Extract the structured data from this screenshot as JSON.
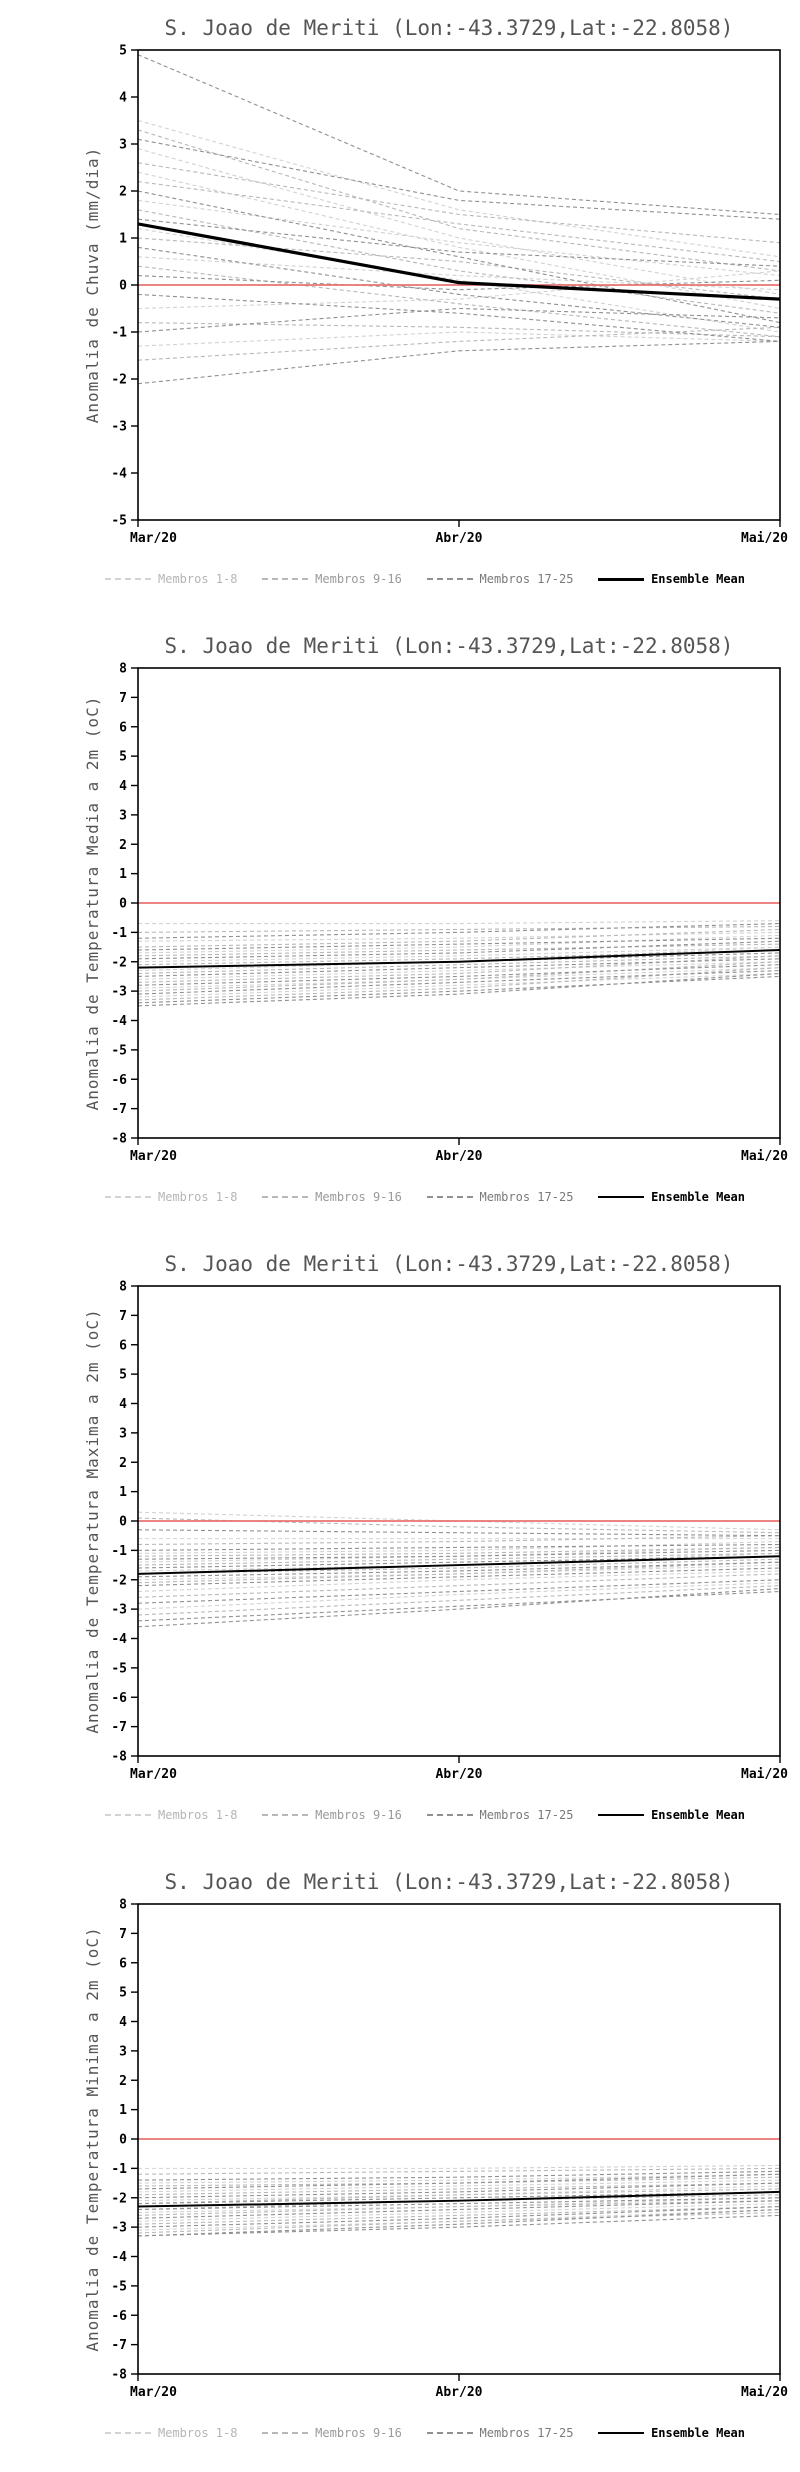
{
  "colors": {
    "membros_1_8": "#d2d2d2",
    "membros_9_16": "#b8b8b8",
    "membros_17_25": "#909090",
    "ensemble_mean": "#000000",
    "zero_line": "#e87272",
    "axis": "#000000",
    "title_text": "#555555"
  },
  "legend": {
    "items": [
      {
        "label": "Membros 1-8",
        "group": "membros_1_8",
        "line_style": "dashed",
        "color": "#d2d2d2",
        "label_color": "#b5b5b5"
      },
      {
        "label": "Membros 9-16",
        "group": "membros_9_16",
        "line_style": "dashed",
        "color": "#b8b8b8",
        "label_color": "#9a9a9a"
      },
      {
        "label": "Membros 17-25",
        "group": "membros_17_25",
        "line_style": "dashed",
        "color": "#909090",
        "label_color": "#7a7a7a"
      },
      {
        "label": "Ensemble Mean",
        "group": "ensemble_mean",
        "line_style": "solid",
        "color": "#000000",
        "label_color": "#000000"
      }
    ]
  },
  "chart_data": [
    {
      "type": "line",
      "title": "S. Joao de Meriti (Lon:-43.3729,Lat:-22.8058)",
      "ylabel": "Anomalia de Chuva (mm/dia)",
      "xlabel": "",
      "x_categories": [
        "Mar/20",
        "Abr/20",
        "Mai/20"
      ],
      "ylim": [
        -5,
        5
      ],
      "ytick_step": 1,
      "zero_line": 0,
      "grid": false,
      "legend_position": "bottom",
      "series": {
        "membros_1_8": [
          [
            3.5,
            1.6,
            0.6
          ],
          [
            2.9,
            1.0,
            -0.2
          ],
          [
            2.4,
            0.8,
            -0.5
          ],
          [
            1.8,
            0.9,
            0.2
          ],
          [
            1.2,
            0.1,
            -1.0
          ],
          [
            0.6,
            0.2,
            -0.1
          ],
          [
            -0.5,
            -0.3,
            0.3
          ],
          [
            -1.3,
            -1.0,
            -1.2
          ]
        ],
        "membros_9_16": [
          [
            3.3,
            1.2,
            0.3
          ],
          [
            2.6,
            1.5,
            0.9
          ],
          [
            2.2,
            1.3,
            0.5
          ],
          [
            1.6,
            0.3,
            -0.6
          ],
          [
            1.0,
            0.5,
            -0.3
          ],
          [
            0.4,
            -0.4,
            -1.1
          ],
          [
            -0.8,
            -0.9,
            -1.1
          ],
          [
            -1.6,
            -1.2,
            -0.9
          ]
        ],
        "membros_17_25": [
          [
            4.9,
            2.0,
            1.5
          ],
          [
            3.1,
            1.8,
            1.4
          ],
          [
            2.0,
            0.6,
            -0.8
          ],
          [
            1.4,
            0.7,
            0.4
          ],
          [
            0.8,
            -0.2,
            -0.9
          ],
          [
            0.2,
            -0.1,
            0.1
          ],
          [
            -0.2,
            -0.6,
            -1.2
          ],
          [
            -1.0,
            -0.5,
            -0.7
          ],
          [
            -2.1,
            -1.4,
            -1.2
          ]
        ],
        "ensemble_mean": [
          1.3,
          0.05,
          -0.3
        ]
      }
    },
    {
      "type": "line",
      "title": "S. Joao de Meriti (Lon:-43.3729,Lat:-22.8058)",
      "ylabel": "Anomalia de Temperatura Media a 2m (oC)",
      "xlabel": "",
      "x_categories": [
        "Mar/20",
        "Abr/20",
        "Mai/20"
      ],
      "ylim": [
        -8,
        8
      ],
      "ytick_step": 1,
      "zero_line": 0,
      "grid": false,
      "legend_position": "bottom",
      "series": {
        "membros_1_8": [
          [
            -0.7,
            -0.7,
            -0.6
          ],
          [
            -1.3,
            -1.2,
            -1.0
          ],
          [
            -1.7,
            -1.5,
            -1.1
          ],
          [
            -2.0,
            -1.8,
            -1.5
          ],
          [
            -2.3,
            -2.0,
            -1.5
          ],
          [
            -2.6,
            -2.3,
            -2.0
          ],
          [
            -2.9,
            -2.6,
            -2.2
          ],
          [
            -3.2,
            -2.8,
            -2.4
          ]
        ],
        "membros_9_16": [
          [
            -1.0,
            -0.9,
            -0.8
          ],
          [
            -1.5,
            -1.3,
            -0.9
          ],
          [
            -1.8,
            -1.6,
            -1.4
          ],
          [
            -2.1,
            -1.9,
            -1.6
          ],
          [
            -2.4,
            -2.1,
            -1.8
          ],
          [
            -2.7,
            -2.4,
            -1.8
          ],
          [
            -3.0,
            -2.6,
            -2.0
          ],
          [
            -3.3,
            -2.9,
            -2.2
          ]
        ],
        "membros_17_25": [
          [
            -1.2,
            -1.0,
            -0.7
          ],
          [
            -1.6,
            -1.4,
            -1.2
          ],
          [
            -1.9,
            -1.7,
            -1.3
          ],
          [
            -2.2,
            -2.0,
            -1.7
          ],
          [
            -2.5,
            -2.2,
            -1.9
          ],
          [
            -2.8,
            -2.5,
            -2.1
          ],
          [
            -3.1,
            -2.7,
            -2.3
          ],
          [
            -3.4,
            -3.0,
            -2.5
          ],
          [
            -3.5,
            -3.1,
            -2.4
          ]
        ],
        "ensemble_mean": [
          -2.2,
          -2.0,
          -1.6
        ]
      }
    },
    {
      "type": "line",
      "title": "S. Joao de Meriti (Lon:-43.3729,Lat:-22.8058)",
      "ylabel": "Anomalia de Temperatura Maxima a 2m (oC)",
      "xlabel": "",
      "x_categories": [
        "Mar/20",
        "Abr/20",
        "Mai/20"
      ],
      "ylim": [
        -8,
        8
      ],
      "ytick_step": 1,
      "zero_line": 0,
      "grid": false,
      "legend_position": "bottom",
      "series": {
        "membros_1_8": [
          [
            0.3,
            0.0,
            -0.3
          ],
          [
            -0.6,
            -0.6,
            -0.6
          ],
          [
            -1.1,
            -1.0,
            -0.7
          ],
          [
            -1.4,
            -1.2,
            -0.9
          ],
          [
            -1.7,
            -1.5,
            -1.1
          ],
          [
            -2.0,
            -1.8,
            -1.5
          ],
          [
            -2.4,
            -2.0,
            -1.7
          ],
          [
            -3.0,
            -2.5,
            -2.1
          ]
        ],
        "membros_9_16": [
          [
            0.1,
            -0.2,
            -0.4
          ],
          [
            -0.8,
            -0.7,
            -0.5
          ],
          [
            -1.2,
            -1.1,
            -0.9
          ],
          [
            -1.5,
            -1.3,
            -1.1
          ],
          [
            -1.8,
            -1.6,
            -1.3
          ],
          [
            -2.1,
            -1.8,
            -1.4
          ],
          [
            -2.6,
            -2.2,
            -1.8
          ],
          [
            -3.2,
            -2.7,
            -2.2
          ]
        ],
        "membros_17_25": [
          [
            -0.3,
            -0.4,
            -0.5
          ],
          [
            -1.0,
            -0.9,
            -0.8
          ],
          [
            -1.3,
            -1.2,
            -1.0
          ],
          [
            -1.6,
            -1.4,
            -1.2
          ],
          [
            -1.9,
            -1.7,
            -1.4
          ],
          [
            -2.2,
            -1.9,
            -1.6
          ],
          [
            -2.8,
            -2.4,
            -2.0
          ],
          [
            -3.4,
            -2.9,
            -2.4
          ],
          [
            -3.6,
            -3.0,
            -2.3
          ]
        ],
        "ensemble_mean": [
          -1.8,
          -1.5,
          -1.2
        ]
      }
    },
    {
      "type": "line",
      "title": "S. Joao de Meriti (Lon:-43.3729,Lat:-22.8058)",
      "ylabel": "Anomalia de Temperatura Minima a 2m (oC)",
      "xlabel": "",
      "x_categories": [
        "Mar/20",
        "Abr/20",
        "Mai/20"
      ],
      "ylim": [
        -8,
        8
      ],
      "ytick_step": 1,
      "zero_line": 0,
      "grid": false,
      "legend_position": "bottom",
      "series": {
        "membros_1_8": [
          [
            -1.0,
            -1.0,
            -0.9
          ],
          [
            -1.5,
            -1.4,
            -1.2
          ],
          [
            -1.8,
            -1.6,
            -1.4
          ],
          [
            -2.1,
            -1.9,
            -1.6
          ],
          [
            -2.3,
            -2.1,
            -1.8
          ],
          [
            -2.5,
            -2.3,
            -2.0
          ],
          [
            -2.8,
            -2.5,
            -2.2
          ],
          [
            -3.1,
            -2.8,
            -2.4
          ]
        ],
        "membros_9_16": [
          [
            -1.2,
            -1.1,
            -1.0
          ],
          [
            -1.6,
            -1.5,
            -1.3
          ],
          [
            -1.9,
            -1.7,
            -1.5
          ],
          [
            -2.2,
            -1.9,
            -1.7
          ],
          [
            -2.4,
            -2.1,
            -1.9
          ],
          [
            -2.6,
            -2.3,
            -2.1
          ],
          [
            -2.9,
            -2.6,
            -2.3
          ],
          [
            -3.2,
            -2.8,
            -2.5
          ]
        ],
        "membros_17_25": [
          [
            -1.4,
            -1.3,
            -1.1
          ],
          [
            -1.7,
            -1.5,
            -1.2
          ],
          [
            -2.0,
            -1.8,
            -1.5
          ],
          [
            -2.2,
            -2.0,
            -1.8
          ],
          [
            -2.4,
            -2.2,
            -2.0
          ],
          [
            -2.7,
            -2.4,
            -2.1
          ],
          [
            -3.0,
            -2.7,
            -2.3
          ],
          [
            -3.3,
            -2.9,
            -2.4
          ],
          [
            -3.3,
            -3.0,
            -2.6
          ]
        ],
        "ensemble_mean": [
          -2.3,
          -2.1,
          -1.8
        ]
      }
    }
  ]
}
